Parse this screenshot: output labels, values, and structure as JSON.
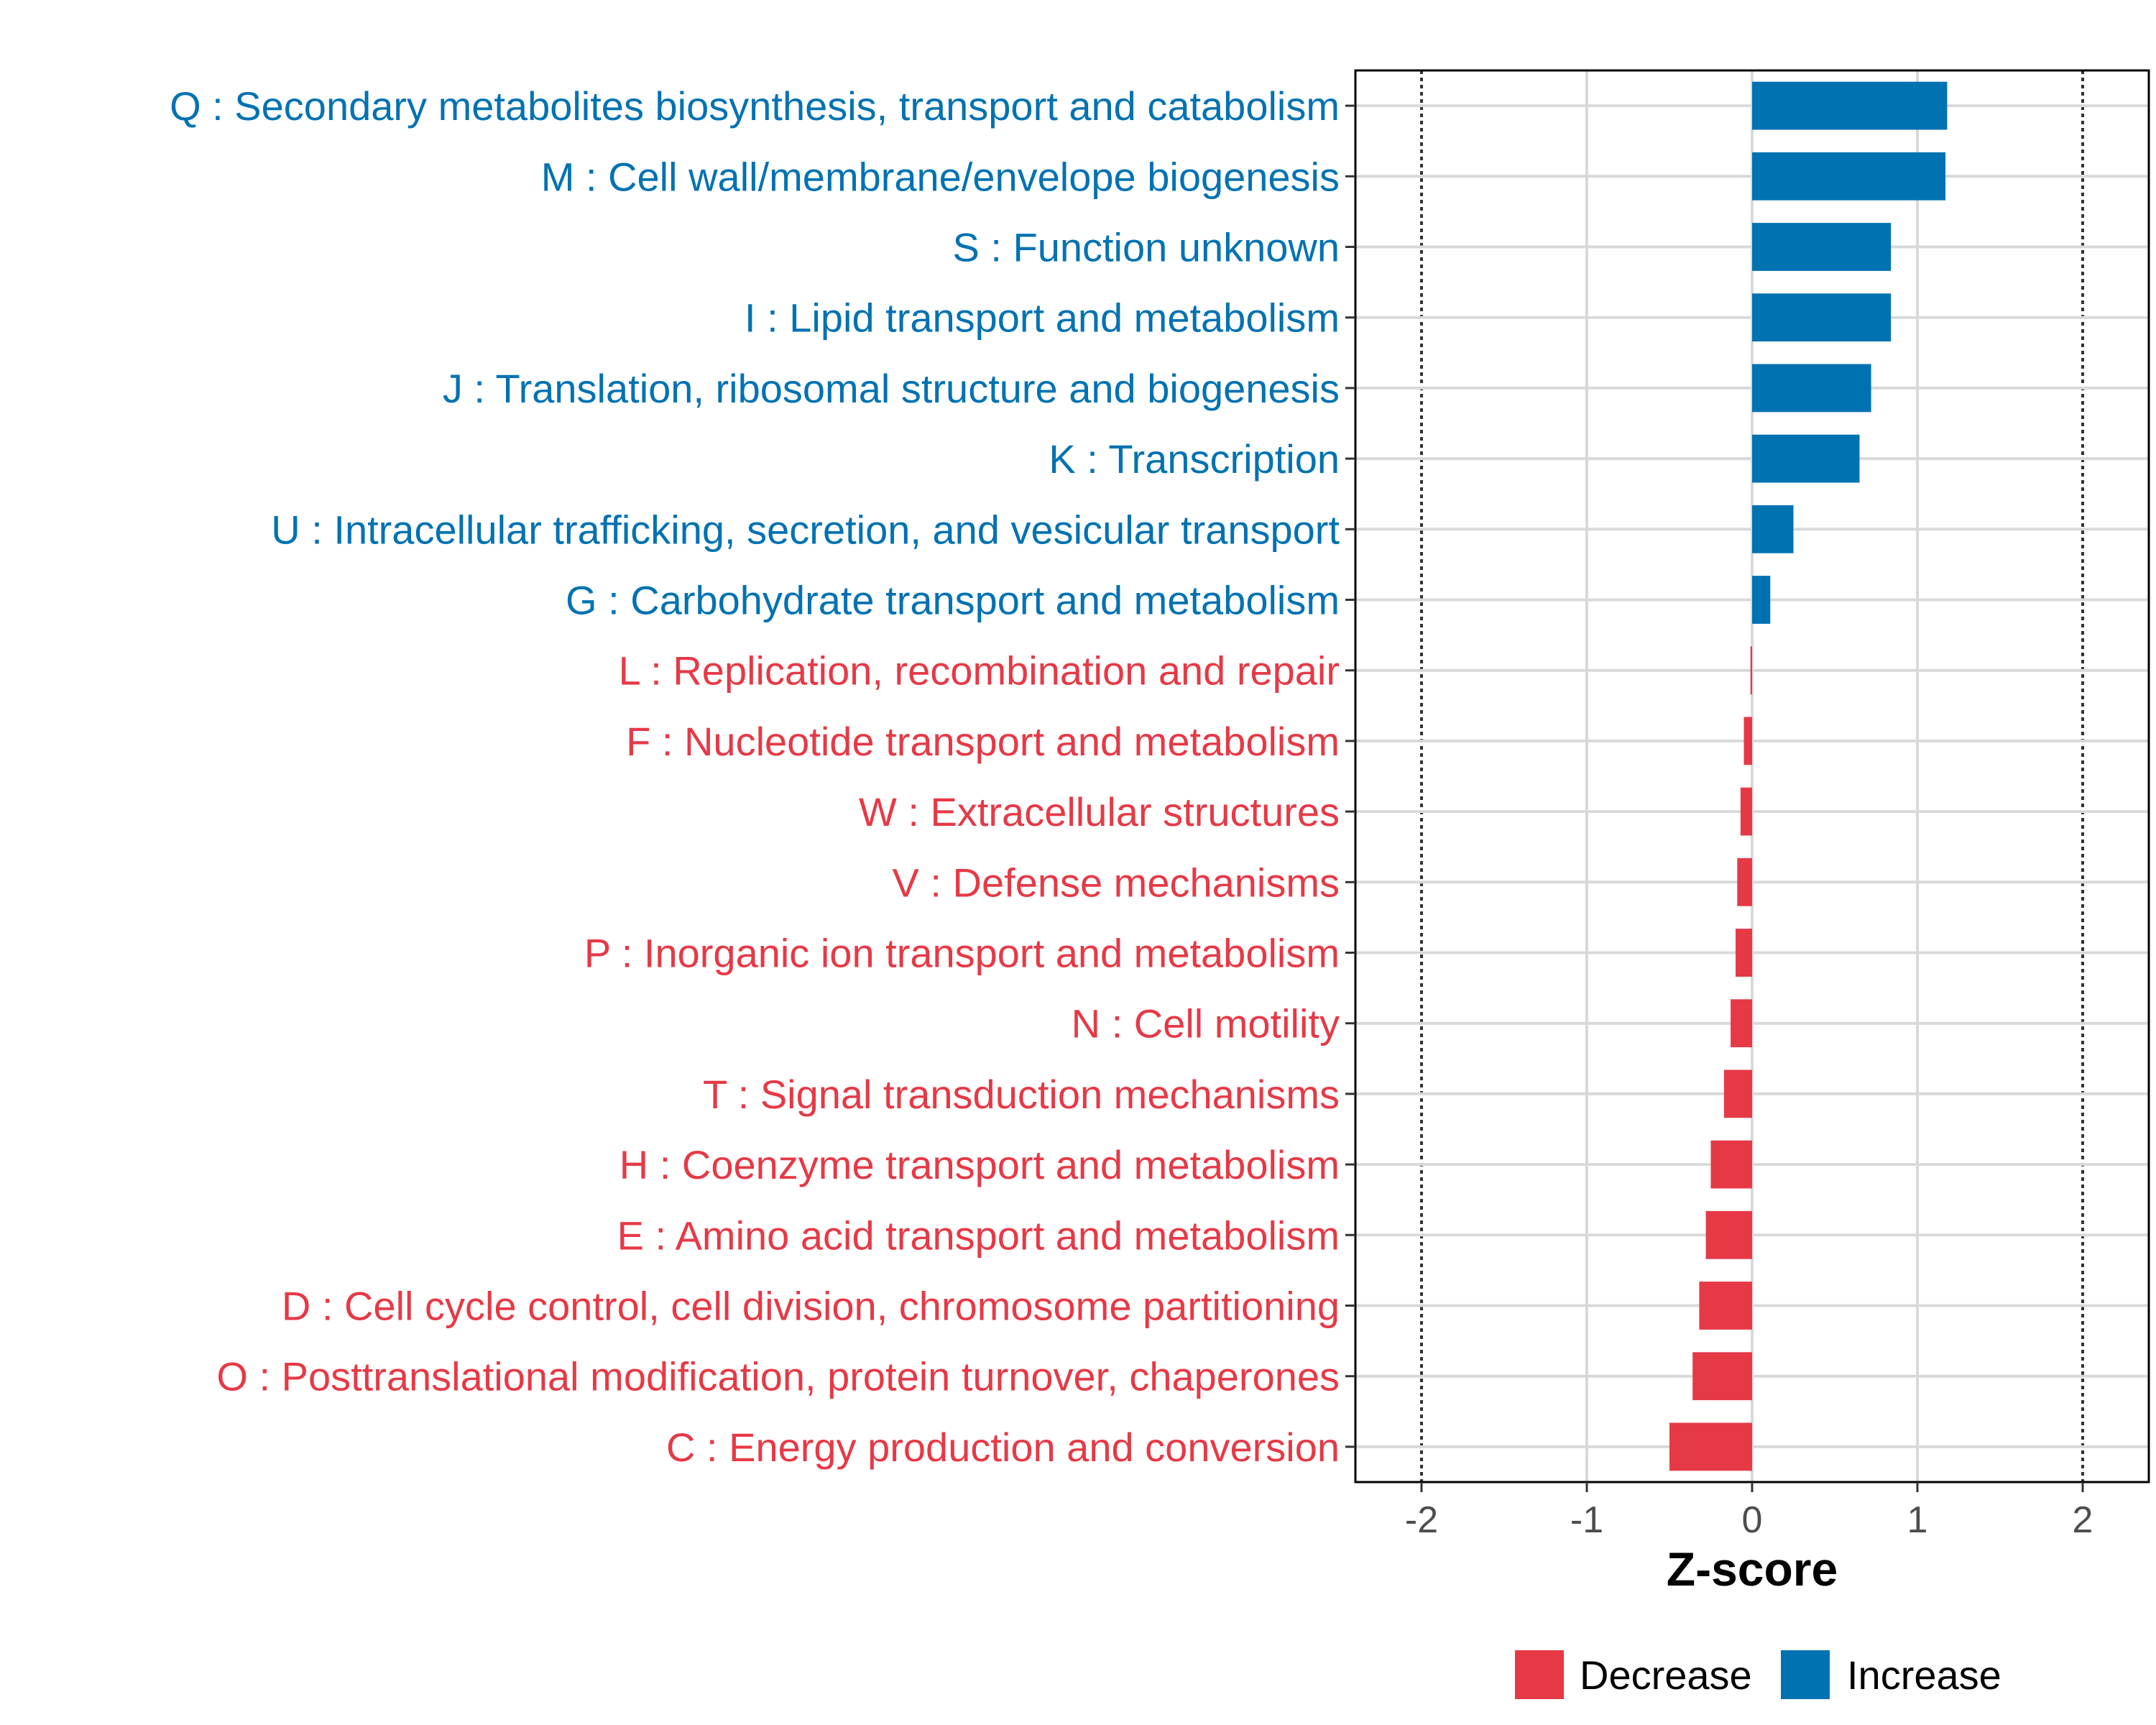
{
  "chart_data": {
    "type": "bar",
    "orientation": "horizontal",
    "xlabel": "Z-score",
    "xlim": [
      -2.4,
      2.4
    ],
    "xticks": [
      -2,
      -1,
      0,
      1,
      2
    ],
    "xtick_labels": [
      "-2",
      "-1",
      "0",
      "1",
      "2"
    ],
    "reference_lines": [
      -2,
      2
    ],
    "grid": true,
    "legend_position": "bottom",
    "categories": [
      "Q : Secondary metabolites biosynthesis, transport and catabolism",
      "M : Cell wall/membrane/envelope biogenesis",
      "S : Function unknown",
      "I : Lipid transport and metabolism",
      "J : Translation, ribosomal structure and biogenesis",
      "K : Transcription",
      "U : Intracellular trafficking, secretion, and vesicular transport",
      "G : Carbohydrate transport and metabolism",
      "L : Replication, recombination and repair",
      "F : Nucleotide transport and metabolism",
      "W : Extracellular structures",
      "V : Defense mechanisms",
      "P : Inorganic ion transport and metabolism",
      "N : Cell motility",
      "T : Signal transduction mechanisms",
      "H : Coenzyme transport and metabolism",
      "E : Amino acid transport and metabolism",
      "D : Cell cycle control, cell division, chromosome partitioning",
      "O : Posttranslational modification, protein turnover, chaperones",
      "C : Energy production and conversion"
    ],
    "values": [
      1.18,
      1.17,
      0.84,
      0.84,
      0.72,
      0.65,
      0.25,
      0.11,
      -0.01,
      -0.05,
      -0.07,
      -0.09,
      -0.1,
      -0.13,
      -0.17,
      -0.25,
      -0.28,
      -0.32,
      -0.36,
      -0.5
    ],
    "groups": [
      "Increase",
      "Increase",
      "Increase",
      "Increase",
      "Increase",
      "Increase",
      "Increase",
      "Increase",
      "Decrease",
      "Decrease",
      "Decrease",
      "Decrease",
      "Decrease",
      "Decrease",
      "Decrease",
      "Decrease",
      "Decrease",
      "Decrease",
      "Decrease",
      "Decrease"
    ],
    "legend": [
      {
        "name": "Decrease",
        "color": "#E63946"
      },
      {
        "name": "Increase",
        "color": "#0072B2"
      }
    ]
  }
}
